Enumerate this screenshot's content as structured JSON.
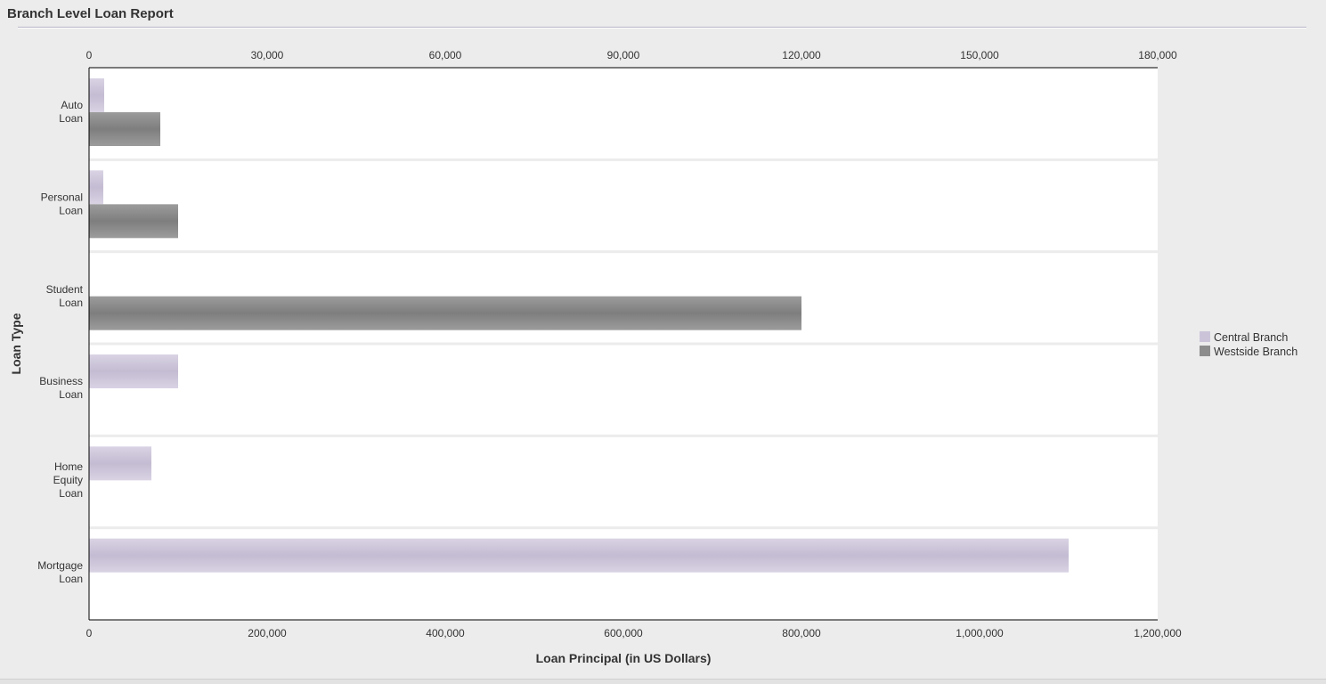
{
  "panel": {
    "title": "Branch Level Loan Report"
  },
  "colors": {
    "central": "#cbc4d9",
    "westside": "#8c8c8c",
    "background": "#ececec",
    "plot": "#ffffff",
    "bandDivider": "#ececec"
  },
  "chart_data": {
    "type": "bar",
    "orientation": "horizontal",
    "categories": [
      "Auto\nLoan",
      "Personal\nLoan",
      "Student\nLoan",
      "Business\nLoan",
      "Home\nEquity\nLoan",
      "Mortgage\nLoan"
    ],
    "series": [
      {
        "name": "Central Branch",
        "color": "#cbc4d9",
        "values": [
          17000,
          16000,
          0,
          100000,
          70000,
          1100000
        ]
      },
      {
        "name": "Westside Branch",
        "color": "#8c8c8c",
        "values": [
          80000,
          100000,
          800000,
          0,
          0,
          0
        ]
      }
    ],
    "xlabel": "Loan Principal (in US Dollars)",
    "ylabel": "Loan Type",
    "xlim": [
      0,
      1200000
    ],
    "x_ticks_bottom": [
      "0",
      "200,000",
      "400,000",
      "600,000",
      "800,000",
      "1,000,000",
      "1,200,000"
    ],
    "x_ticks_top": [
      "0",
      "30,000",
      "60,000",
      "90,000",
      "120,000",
      "150,000",
      "180,000"
    ],
    "grid": false,
    "legend_position": "right"
  }
}
